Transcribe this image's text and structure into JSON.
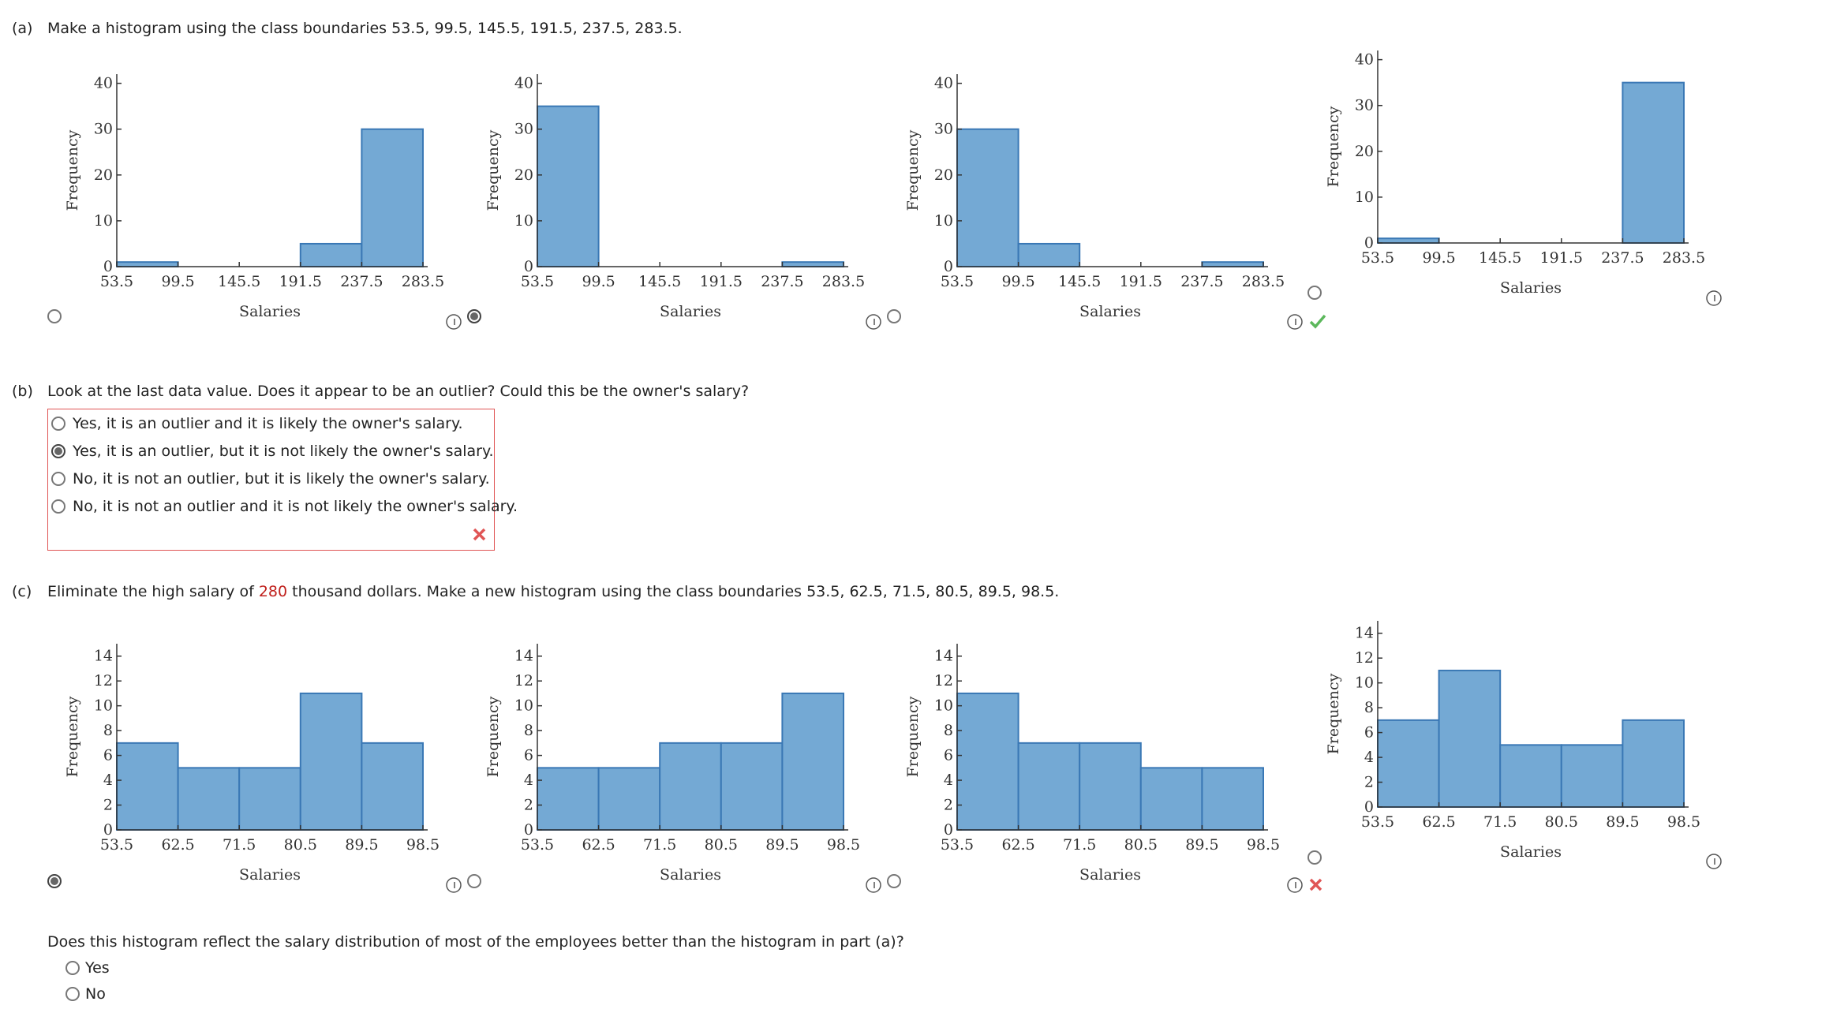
{
  "part_a": {
    "label": "(a)",
    "prompt": "Make a histogram using the class boundaries 53.5, 99.5, 145.5, 191.5, 237.5, 283.5."
  },
  "part_b": {
    "label": "(b)",
    "prompt": "Look at the last data value. Does it appear to be an outlier? Could this be the owner's salary?",
    "options": [
      "Yes, it is an outlier and it is likely the owner's salary.",
      "Yes, it is an outlier, but it is not likely the owner's salary.",
      "No, it is not an outlier, but it is likely the owner's salary.",
      "No, it is not an outlier and it is not likely the owner's salary."
    ]
  },
  "part_c": {
    "label": "(c)",
    "prompt_start": "Eliminate the high salary of",
    "highlight": "280",
    "prompt_end": "thousand dollars. Make a new histogram using the class boundaries 53.5, 62.5, 71.5, 80.5, 89.5, 98.5."
  },
  "part_d": {
    "prompt": "Does this histogram reflect the salary distribution of most of the employees better than the histogram in part (a)?",
    "options": [
      "Yes",
      "No"
    ]
  },
  "chart_data": [
    {
      "type": "histogram",
      "xlabel": "Salaries",
      "ylabel": "Frequency",
      "bins": [
        53.5,
        99.5,
        145.5,
        191.5,
        237.5,
        283.5
      ],
      "values": [
        1,
        0,
        0,
        5,
        30
      ],
      "xlim": [
        53.5,
        283.5
      ],
      "xticks": [
        53.5,
        99.5,
        145.5,
        191.5,
        237.5,
        283.5
      ],
      "ylim": [
        0,
        42
      ],
      "yticks": [
        0,
        10,
        20,
        30,
        40
      ],
      "color": "#74a9d4"
    },
    {
      "type": "histogram",
      "xlabel": "Salaries",
      "ylabel": "Frequency",
      "bins": [
        53.5,
        99.5,
        145.5,
        191.5,
        237.5,
        283.5
      ],
      "values": [
        35,
        0,
        0,
        0,
        1
      ],
      "xlim": [
        53.5,
        283.5
      ],
      "xticks": [
        53.5,
        99.5,
        145.5,
        191.5,
        237.5,
        283.5
      ],
      "ylim": [
        0,
        42
      ],
      "yticks": [
        0,
        10,
        20,
        30,
        40
      ],
      "color": "#74a9d4"
    },
    {
      "type": "histogram",
      "xlabel": "Salaries",
      "ylabel": "Frequency",
      "bins": [
        53.5,
        99.5,
        145.5,
        191.5,
        237.5,
        283.5
      ],
      "values": [
        30,
        5,
        0,
        0,
        1
      ],
      "xlim": [
        53.5,
        283.5
      ],
      "xticks": [
        53.5,
        99.5,
        145.5,
        191.5,
        237.5,
        283.5
      ],
      "ylim": [
        0,
        42
      ],
      "yticks": [
        0,
        10,
        20,
        30,
        40
      ],
      "color": "#74a9d4"
    },
    {
      "type": "histogram",
      "xlabel": "Salaries",
      "ylabel": "Frequency",
      "bins": [
        53.5,
        99.5,
        145.5,
        191.5,
        237.5,
        283.5
      ],
      "values": [
        1,
        0,
        0,
        0,
        35
      ],
      "xlim": [
        53.5,
        283.5
      ],
      "xticks": [
        53.5,
        99.5,
        145.5,
        191.5,
        237.5,
        283.5
      ],
      "ylim": [
        0,
        42
      ],
      "yticks": [
        0,
        10,
        20,
        30,
        40
      ],
      "color": "#74a9d4"
    },
    {
      "type": "histogram",
      "xlabel": "Salaries",
      "ylabel": "Frequency",
      "bins": [
        53.5,
        62.5,
        71.5,
        80.5,
        89.5,
        98.5
      ],
      "values": [
        7,
        5,
        5,
        11,
        7
      ],
      "xlim": [
        53.5,
        98.5
      ],
      "xticks": [
        53.5,
        62.5,
        71.5,
        80.5,
        89.5,
        98.5
      ],
      "ylim": [
        0,
        15
      ],
      "yticks": [
        0,
        2,
        4,
        6,
        8,
        10,
        12,
        14
      ],
      "color": "#74a9d4"
    },
    {
      "type": "histogram",
      "xlabel": "Salaries",
      "ylabel": "Frequency",
      "bins": [
        53.5,
        62.5,
        71.5,
        80.5,
        89.5,
        98.5
      ],
      "values": [
        5,
        5,
        7,
        7,
        11
      ],
      "xlim": [
        53.5,
        98.5
      ],
      "xticks": [
        53.5,
        62.5,
        71.5,
        80.5,
        89.5,
        98.5
      ],
      "ylim": [
        0,
        15
      ],
      "yticks": [
        0,
        2,
        4,
        6,
        8,
        10,
        12,
        14
      ],
      "color": "#74a9d4"
    },
    {
      "type": "histogram",
      "xlabel": "Salaries",
      "ylabel": "Frequency",
      "bins": [
        53.5,
        62.5,
        71.5,
        80.5,
        89.5,
        98.5
      ],
      "values": [
        11,
        7,
        7,
        5,
        5
      ],
      "xlim": [
        53.5,
        98.5
      ],
      "xticks": [
        53.5,
        62.5,
        71.5,
        80.5,
        89.5,
        98.5
      ],
      "ylim": [
        0,
        15
      ],
      "yticks": [
        0,
        2,
        4,
        6,
        8,
        10,
        12,
        14
      ],
      "color": "#74a9d4"
    },
    {
      "type": "histogram",
      "xlabel": "Salaries",
      "ylabel": "Frequency",
      "bins": [
        53.5,
        62.5,
        71.5,
        80.5,
        89.5,
        98.5
      ],
      "values": [
        7,
        11,
        5,
        5,
        7
      ],
      "xlim": [
        53.5,
        98.5
      ],
      "xticks": [
        53.5,
        62.5,
        71.5,
        80.5,
        89.5,
        98.5
      ],
      "ylim": [
        0,
        15
      ],
      "yticks": [
        0,
        2,
        4,
        6,
        8,
        10,
        12,
        14
      ],
      "color": "#74a9d4"
    }
  ]
}
